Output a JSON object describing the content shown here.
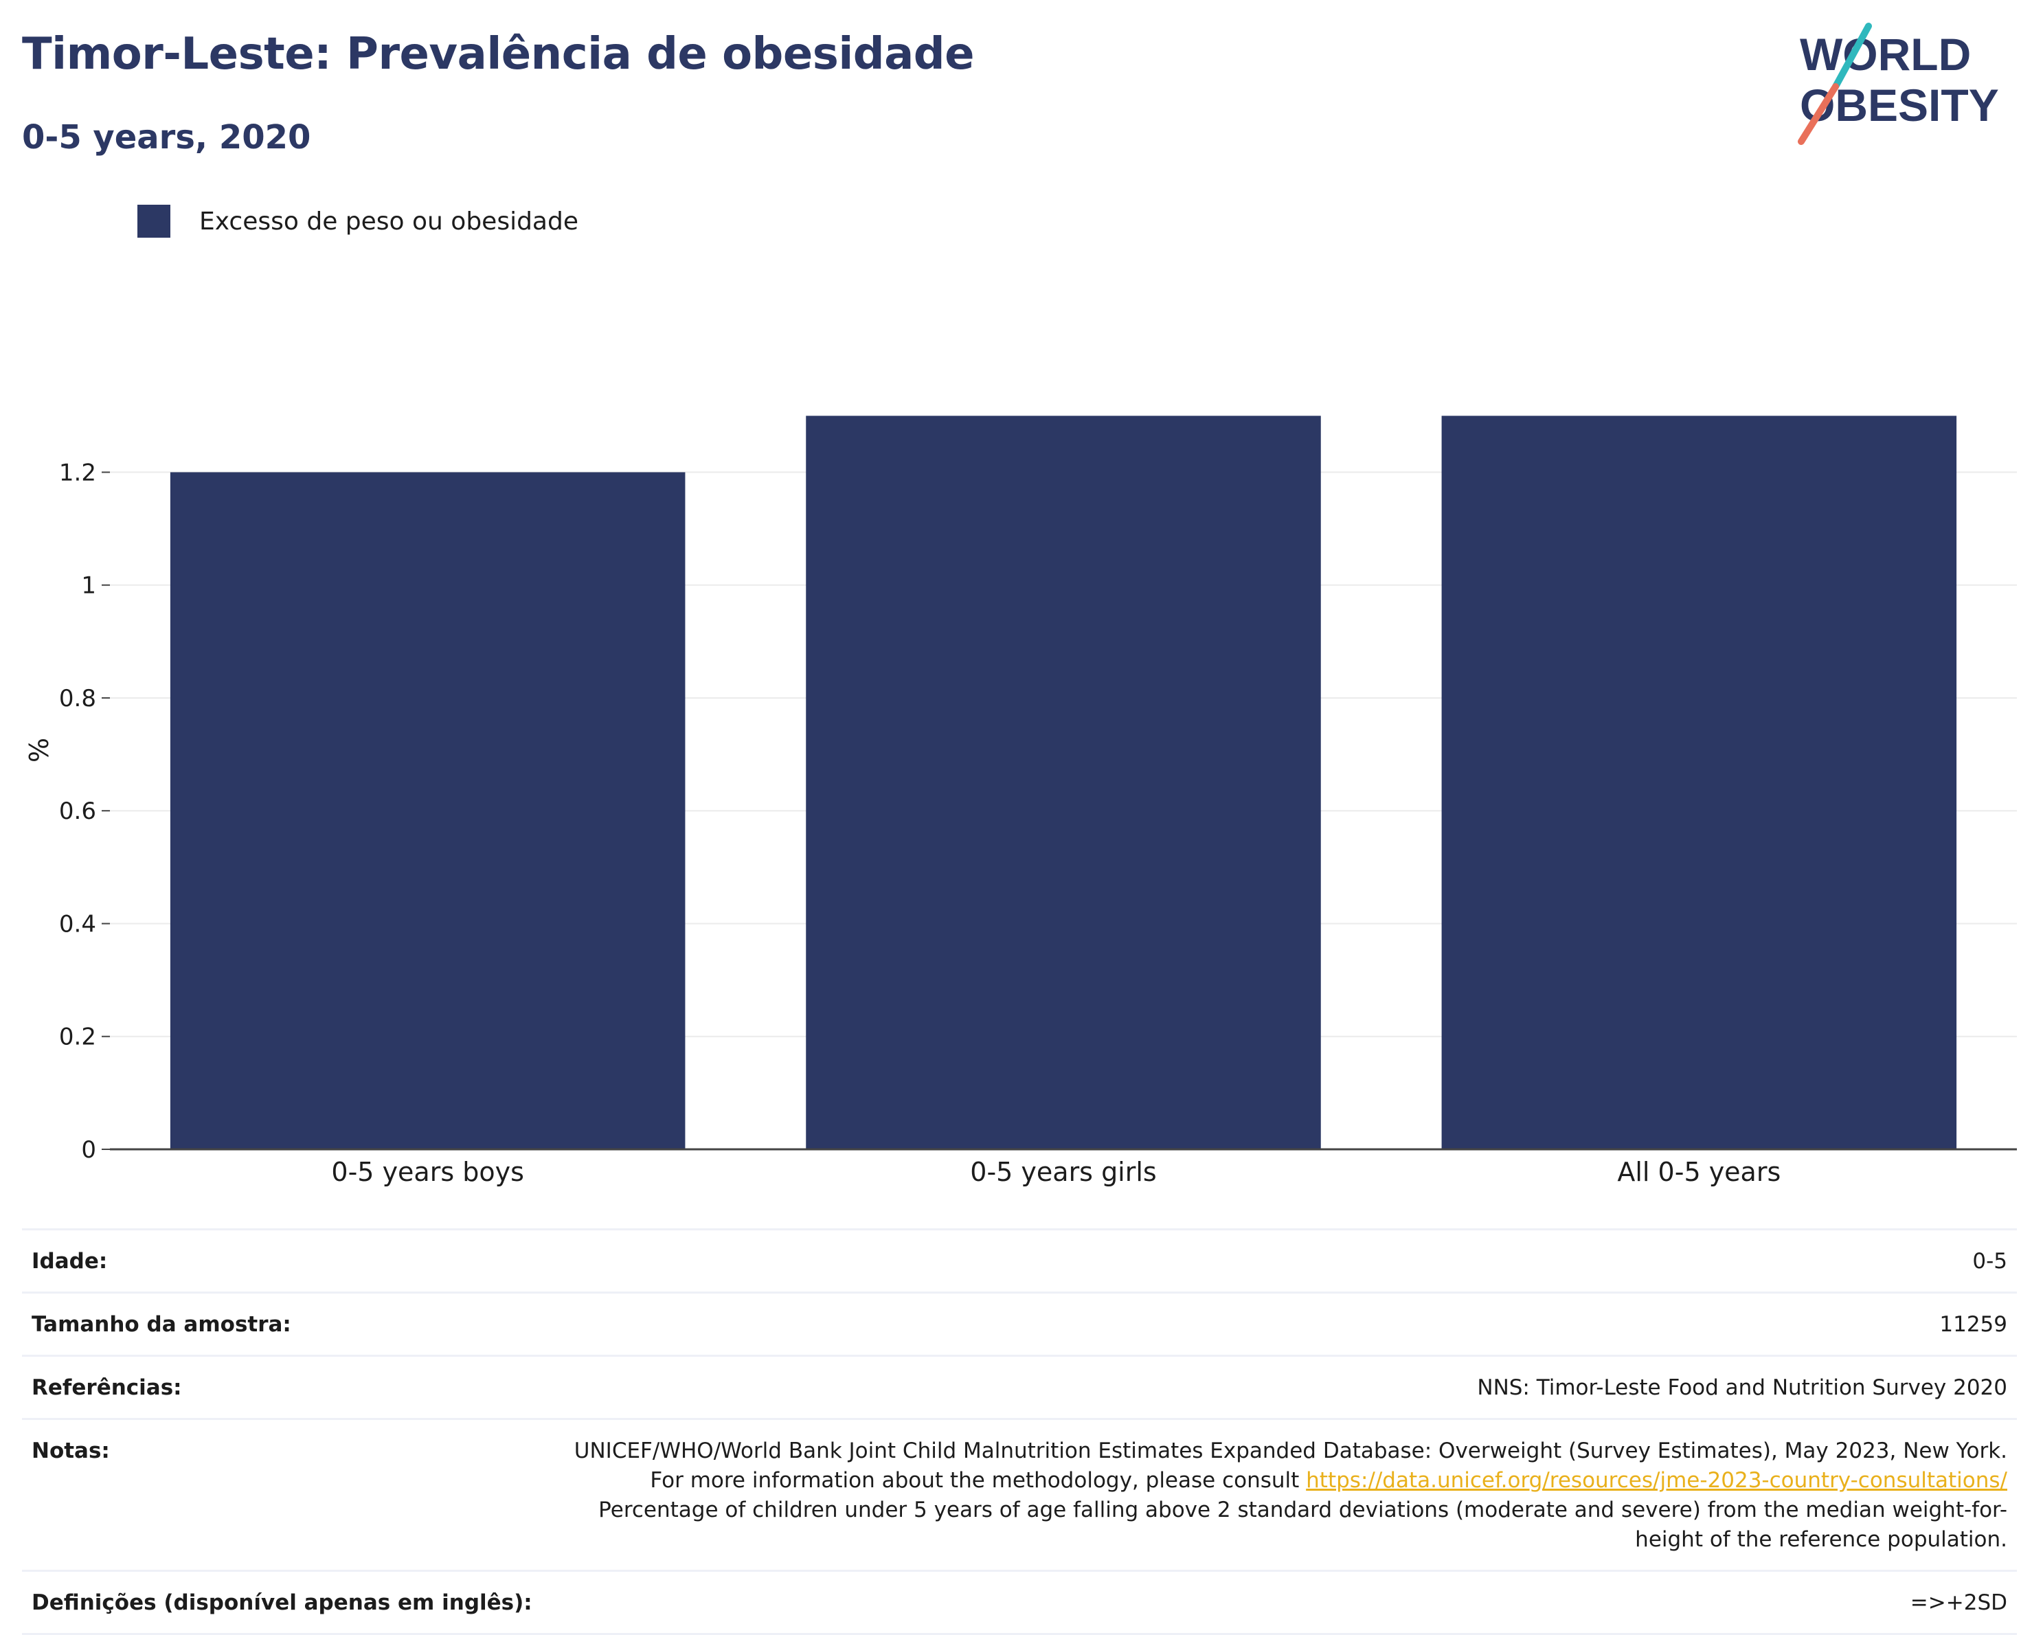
{
  "header": {
    "title": "Timor-Leste: Prevalência de obesidade",
    "subtitle": "0-5 years, 2020"
  },
  "logo": {
    "line1": "WORLD",
    "line2": "OBESITY"
  },
  "chart_data": {
    "type": "bar",
    "categories": [
      "0-5 years boys",
      "0-5 years girls",
      "All 0-5 years"
    ],
    "series": [
      {
        "name": "Excesso de peso ou obesidade",
        "values": [
          1.2,
          1.3,
          1.3
        ],
        "color": "#2c3864"
      }
    ],
    "ylabel": "%",
    "ylim": [
      0,
      1.3
    ],
    "yticks": [
      0,
      0.2,
      0.4,
      0.6,
      0.8,
      1,
      1.2
    ],
    "ytick_labels": [
      "0",
      "0.2",
      "0.4",
      "0.6",
      "0.8",
      "1",
      "1.2"
    ],
    "grid": true,
    "legend_position": "top-left"
  },
  "info": {
    "rows": [
      {
        "label": "Idade:",
        "value": "0-5"
      },
      {
        "label": "Tamanho da amostra:",
        "value": "11259"
      },
      {
        "label": "Referências:",
        "value": "NNS: Timor-Leste Food and Nutrition Survey 2020"
      },
      {
        "label": "Notas:",
        "value_before_link": "UNICEF/WHO/World Bank Joint Child Malnutrition Estimates Expanded Database: Overweight (Survey Estimates), May 2023, New York. For more information about the methodology, please consult ",
        "link": "https://data.unicef.org/resources/jme-2023-country-consultations/",
        "value_after_link": "Percentage of children under 5 years of age falling above 2 standard deviations (moderate and severe) from the median weight-for-height of the reference population."
      },
      {
        "label": "Definições (disponível apenas em inglês):",
        "value": "=>+2SD"
      }
    ]
  },
  "colors": {
    "brand_navy": "#2c3864",
    "brand_teal": "#2fb8bd",
    "brand_coral": "#e9705a",
    "link": "#e9b01b",
    "grid": "#ebebeb"
  }
}
